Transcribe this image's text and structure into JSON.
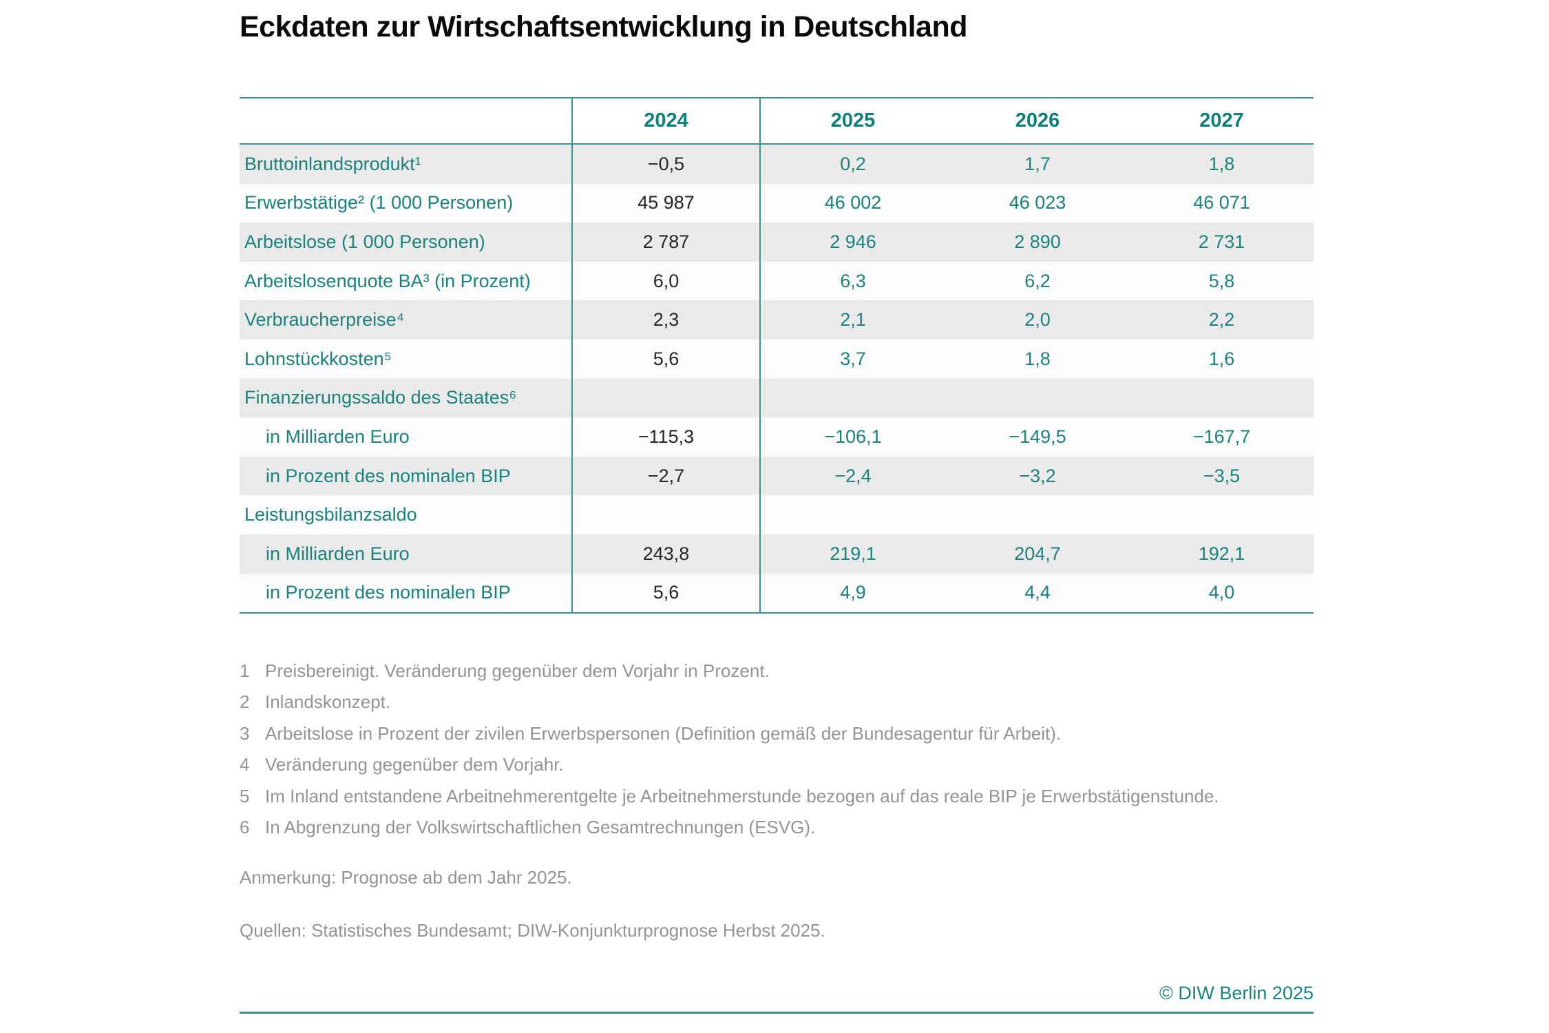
{
  "title": "Eckdaten zur Wirtschaftsentwicklung in Deutschland",
  "colors": {
    "teal_text": "#1a837d",
    "teal_dark": "#0e807b",
    "teal_line": "#38948e",
    "value_black": "#262626",
    "row_stripe": "#eaeaea",
    "fn_gray": "#949494"
  },
  "table": {
    "years": [
      "2024",
      "2025",
      "2026",
      "2027"
    ],
    "rows": [
      {
        "label": "Bruttoinlandsprodukt¹",
        "indent": false,
        "values": [
          "−0,5",
          "0,2",
          "1,7",
          "1,8"
        ]
      },
      {
        "label": "Erwerbstätige² (1 000 Personen)",
        "indent": false,
        "values": [
          "45 987",
          "46 002",
          "46 023",
          "46 071"
        ]
      },
      {
        "label": "Arbeitslose (1 000 Personen)",
        "indent": false,
        "values": [
          "2 787",
          "2 946",
          "2 890",
          "2 731"
        ]
      },
      {
        "label": "Arbeitslosenquote BA³ (in Prozent)",
        "indent": false,
        "values": [
          "6,0",
          "6,3",
          "6,2",
          "5,8"
        ]
      },
      {
        "label": "Verbraucherpreise⁴",
        "indent": false,
        "values": [
          "2,3",
          "2,1",
          "2,0",
          "2,2"
        ]
      },
      {
        "label": "Lohnstückkosten⁵",
        "indent": false,
        "values": [
          "5,6",
          "3,7",
          "1,8",
          "1,6"
        ]
      },
      {
        "label": "Finanzierungssaldo des Staates⁶",
        "indent": false,
        "values": [
          "",
          "",
          "",
          ""
        ]
      },
      {
        "label": "in Milliarden Euro",
        "indent": true,
        "values": [
          "−115,3",
          "−106,1",
          "−149,5",
          "−167,7"
        ]
      },
      {
        "label": "in Prozent des nominalen BIP",
        "indent": true,
        "values": [
          "−2,7",
          "−2,4",
          "−3,2",
          "−3,5"
        ]
      },
      {
        "label": "Leistungsbilanzsaldo",
        "indent": false,
        "values": [
          "",
          "",
          "",
          ""
        ]
      },
      {
        "label": "in Milliarden Euro",
        "indent": true,
        "values": [
          "243,8",
          "219,1",
          "204,7",
          "192,1"
        ]
      },
      {
        "label": "in Prozent des nominalen BIP",
        "indent": true,
        "values": [
          "5,6",
          "4,9",
          "4,4",
          "4,0"
        ]
      }
    ]
  },
  "footnotes": [
    {
      "num": "1",
      "text": "Preisbereinigt. Veränderung gegenüber dem Vorjahr in Prozent."
    },
    {
      "num": "2",
      "text": "Inlandskonzept."
    },
    {
      "num": "3",
      "text": "Arbeitslose in Prozent der zivilen Erwerbspersonen (Definition gemäß der Bundesagentur für Arbeit)."
    },
    {
      "num": "4",
      "text": "Veränderung gegenüber dem Vorjahr."
    },
    {
      "num": "5",
      "text": "Im Inland entstandene Arbeitnehmerentgelte je Arbeitnehmerstunde bezogen auf das reale BIP je Erwerbstätigenstunde."
    },
    {
      "num": "6",
      "text": "In Abgrenzung der Volkswirtschaftlichen Gesamtrechnungen (ESVG)."
    }
  ],
  "note": "Anmerkung: Prognose ab dem Jahr 2025.",
  "sources": "Quellen: Statistisches Bundesamt; DIW-Konjunkturprognose Herbst 2025.",
  "copyright": "© DIW Berlin 2025",
  "chart_data": {
    "type": "table",
    "title": "Eckdaten zur Wirtschaftsentwicklung in Deutschland",
    "columns": [
      "",
      "2024",
      "2025",
      "2026",
      "2027"
    ],
    "forecast_from": "2025",
    "rows": [
      {
        "label": "Bruttoinlandsprodukt (preisbereinigt, Veränderung in Prozent)",
        "values": [
          -0.5,
          0.2,
          1.7,
          1.8
        ]
      },
      {
        "label": "Erwerbstätige (1 000 Personen)",
        "values": [
          45987,
          46002,
          46023,
          46071
        ]
      },
      {
        "label": "Arbeitslose (1 000 Personen)",
        "values": [
          2787,
          2946,
          2890,
          2731
        ]
      },
      {
        "label": "Arbeitslosenquote BA (in Prozent)",
        "values": [
          6.0,
          6.3,
          6.2,
          5.8
        ]
      },
      {
        "label": "Verbraucherpreise",
        "values": [
          2.3,
          2.1,
          2.0,
          2.2
        ]
      },
      {
        "label": "Lohnstückkosten",
        "values": [
          5.6,
          3.7,
          1.8,
          1.6
        ]
      },
      {
        "label": "Finanzierungssaldo des Staates in Milliarden Euro",
        "values": [
          -115.3,
          -106.1,
          -149.5,
          -167.7
        ]
      },
      {
        "label": "Finanzierungssaldo des Staates in Prozent des nominalen BIP",
        "values": [
          -2.7,
          -2.4,
          -3.2,
          -3.5
        ]
      },
      {
        "label": "Leistungsbilanzsaldo in Milliarden Euro",
        "values": [
          243.8,
          219.1,
          204.7,
          192.1
        ]
      },
      {
        "label": "Leistungsbilanzsaldo in Prozent des nominalen BIP",
        "values": [
          5.6,
          4.9,
          4.4,
          4.0
        ]
      }
    ]
  }
}
